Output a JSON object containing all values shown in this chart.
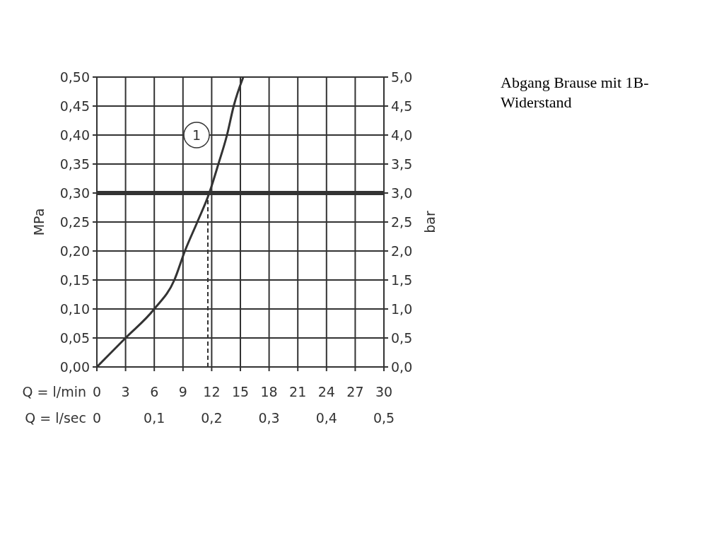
{
  "chart_data": {
    "type": "line",
    "title": "Abgang Brause mit 1B-Widerstand",
    "xlabel": "Q = l/min",
    "x2label": "Q = l/sec",
    "ylabel": "MPa",
    "y2label": "bar",
    "xlim": [
      0,
      30
    ],
    "xticks": [
      0,
      3,
      6,
      9,
      12,
      15,
      18,
      21,
      24,
      27,
      30
    ],
    "x2lim": [
      0,
      0.5
    ],
    "x2ticks": [
      0,
      {
        "value": 0.1,
        "label": "0,1"
      },
      {
        "value": 0.2,
        "label": "0,2"
      },
      {
        "value": 0.3,
        "label": "0,3"
      },
      {
        "value": 0.4,
        "label": "0,4"
      },
      {
        "value": 0.5,
        "label": "0,5"
      }
    ],
    "ylim": [
      0,
      0.5
    ],
    "yticks": [
      {
        "value": 0,
        "label": "0,00"
      },
      {
        "value": 0.05,
        "label": "0,05"
      },
      {
        "value": 0.1,
        "label": "0,10"
      },
      {
        "value": 0.15,
        "label": "0,15"
      },
      {
        "value": 0.2,
        "label": "0,20"
      },
      {
        "value": 0.25,
        "label": "0,25"
      },
      {
        "value": 0.3,
        "label": "0,30"
      },
      {
        "value": 0.35,
        "label": "0,35"
      },
      {
        "value": 0.4,
        "label": "0,40"
      },
      {
        "value": 0.45,
        "label": "0,45"
      },
      {
        "value": 0.5,
        "label": "0,50"
      }
    ],
    "y2lim": [
      0,
      5
    ],
    "y2ticks": [
      {
        "value": 0,
        "label": "0,0"
      },
      {
        "value": 0.5,
        "label": "0,5"
      },
      {
        "value": 1,
        "label": "1,0"
      },
      {
        "value": 1.5,
        "label": "1,5"
      },
      {
        "value": 2,
        "label": "2,0"
      },
      {
        "value": 2.5,
        "label": "2,5"
      },
      {
        "value": 3,
        "label": "3,0"
      },
      {
        "value": 3.5,
        "label": "3,5"
      },
      {
        "value": 4,
        "label": "4,0"
      },
      {
        "value": 4.5,
        "label": "4,5"
      },
      {
        "value": 5,
        "label": "5,0"
      }
    ],
    "grid": true,
    "ref_lines": [
      {
        "axis": "y",
        "value": 0.3,
        "color": "#333333",
        "line_style": "solid"
      },
      {
        "axis": "x",
        "value": 11.6,
        "color": "#333333",
        "line_style": "dashed"
      }
    ],
    "series": [
      {
        "name": "1",
        "color": "#333333",
        "x": [
          0,
          3,
          6,
          8.1,
          9.2,
          10.5,
          11.75,
          12.7,
          13.6,
          14.3,
          15.3
        ],
        "values": [
          0,
          0.05,
          0.1,
          0.15,
          0.2,
          0.25,
          0.3,
          0.35,
          0.4,
          0.45,
          0.5
        ]
      }
    ]
  }
}
